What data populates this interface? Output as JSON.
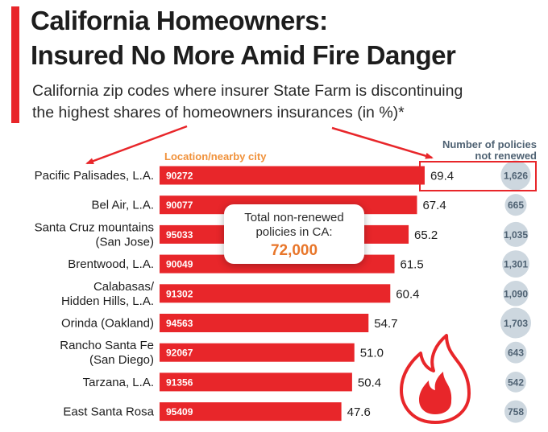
{
  "header": {
    "title_line1": "California Homeowners:",
    "title_line2": "Insured No More Amid Fire Danger",
    "subtitle_line1": "California zip codes where insurer State Farm is discontinuing",
    "subtitle_line2": "the highest shares of homeowners insurances (in %)*"
  },
  "column_headers": {
    "location": "Location/nearby city",
    "policies_line1": "Number of policies",
    "policies_line2": "not renewed"
  },
  "callout": {
    "text_line1": "Total non-renewed",
    "text_line2": "policies in CA:",
    "value": "72,000"
  },
  "icons": {
    "fire": "fire-icon"
  },
  "colors": {
    "bar": "#e8262a",
    "accent": "#e8262a",
    "callout_value": "#e8762a",
    "location_header": "#f0913a",
    "policy_text": "#4f6273",
    "policy_bubble": "#cdd7df"
  },
  "chart_data": {
    "type": "bar",
    "orientation": "horizontal",
    "xlim": [
      0,
      100
    ],
    "categories": [
      {
        "lines": [
          "Pacific Palisades, L.A."
        ],
        "zip": "90272",
        "value": 69.4,
        "label": "69.4",
        "policies": 1626,
        "policies_label": "1,626"
      },
      {
        "lines": [
          "Bel Air, L.A."
        ],
        "zip": "90077",
        "value": 67.4,
        "label": "67.4",
        "policies": 665,
        "policies_label": "665"
      },
      {
        "lines": [
          "Santa Cruz mountains",
          "(San Jose)"
        ],
        "zip": "95033",
        "value": 65.2,
        "label": "65.2",
        "policies": 1035,
        "policies_label": "1,035"
      },
      {
        "lines": [
          "Brentwood, L.A."
        ],
        "zip": "90049",
        "value": 61.5,
        "label": "61.5",
        "policies": 1301,
        "policies_label": "1,301"
      },
      {
        "lines": [
          "Calabasas/",
          "Hidden Hills, L.A."
        ],
        "zip": "91302",
        "value": 60.4,
        "label": "60.4",
        "policies": 1090,
        "policies_label": "1,090"
      },
      {
        "lines": [
          "Orinda (Oakland)"
        ],
        "zip": "94563",
        "value": 54.7,
        "label": "54.7",
        "policies": 1703,
        "policies_label": "1,703"
      },
      {
        "lines": [
          "Rancho Santa Fe",
          "(San Diego)"
        ],
        "zip": "92067",
        "value": 51.0,
        "label": "51.0",
        "policies": 643,
        "policies_label": "643"
      },
      {
        "lines": [
          "Tarzana, L.A."
        ],
        "zip": "91356",
        "value": 50.4,
        "label": "50.4",
        "policies": 542,
        "policies_label": "542"
      },
      {
        "lines": [
          "East Santa Rosa"
        ],
        "zip": "95409",
        "value": 47.6,
        "label": "47.6",
        "policies": 758,
        "policies_label": "758"
      }
    ]
  }
}
